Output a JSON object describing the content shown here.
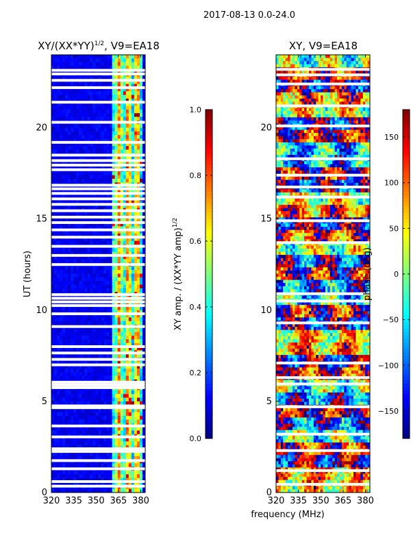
{
  "suptitle": "2017-08-13 0.0-24.0",
  "shared_xlabel": "frequency (MHz)",
  "chart_data": [
    {
      "type": "heatmap",
      "title_prefix": "XY/(XX*YY)",
      "title_exponent": "1/2",
      "title_suffix": ", V9=EA18",
      "ylabel": "UT (hours)",
      "xlim": [
        320,
        383
      ],
      "ylim": [
        0,
        24
      ],
      "xticks": [
        320,
        335,
        350,
        365,
        380
      ],
      "yticks": [
        0,
        5,
        10,
        15,
        20
      ],
      "colorbar": {
        "label": "XY amp. / (XX*YY amp)",
        "label_exponent": "1/2",
        "range": [
          0.0,
          1.0
        ],
        "ticks": [
          "0.0",
          "0.2",
          "0.4",
          "0.6",
          "0.8",
          "1.0"
        ],
        "colormap": "jet"
      },
      "blank_rows_hours": [
        0.35,
        0.6,
        1.3,
        1.75,
        2.25,
        2.4,
        3.05,
        3.65,
        4.65,
        4.75,
        5.75,
        5.9,
        6.05,
        7.0,
        7.3,
        7.65,
        8.0,
        9.1,
        9.8,
        10.25,
        10.45,
        10.65,
        10.85,
        12.5,
        13.0,
        13.5,
        14.0,
        14.4,
        14.8,
        15.1,
        15.45,
        15.8,
        16.1,
        16.4,
        16.65,
        16.85,
        17.7,
        17.95,
        18.2,
        18.5,
        19.2,
        20.3,
        21.4,
        22.2,
        22.6,
        22.95,
        23.15
      ],
      "bright_band_MHz": [
        360,
        382
      ]
    },
    {
      "type": "heatmap",
      "title": "XY, V9=EA18",
      "xlim": [
        320,
        383
      ],
      "ylim": [
        0,
        24
      ],
      "xticks": [
        320,
        335,
        350,
        365,
        380
      ],
      "yticks": [
        0,
        5,
        10,
        15,
        20
      ],
      "colorbar": {
        "label": "phase (deg)",
        "range": [
          -180,
          180
        ],
        "ticks": [
          "−150",
          "−100",
          "−50",
          "0",
          "50",
          "100",
          "150"
        ],
        "tick_values": [
          -150,
          -100,
          -50,
          0,
          50,
          100,
          150
        ],
        "colormap": "jet"
      },
      "blank_rows_hours": [
        0.45,
        1.2,
        2.3,
        3.2,
        4.7,
        5.95,
        6.3,
        7.1,
        9.3,
        10.5,
        10.9,
        13.7,
        14.9,
        16.2,
        16.75,
        17.4,
        18.3,
        20.1,
        21.2,
        22.4,
        22.9,
        23.2
      ]
    }
  ]
}
